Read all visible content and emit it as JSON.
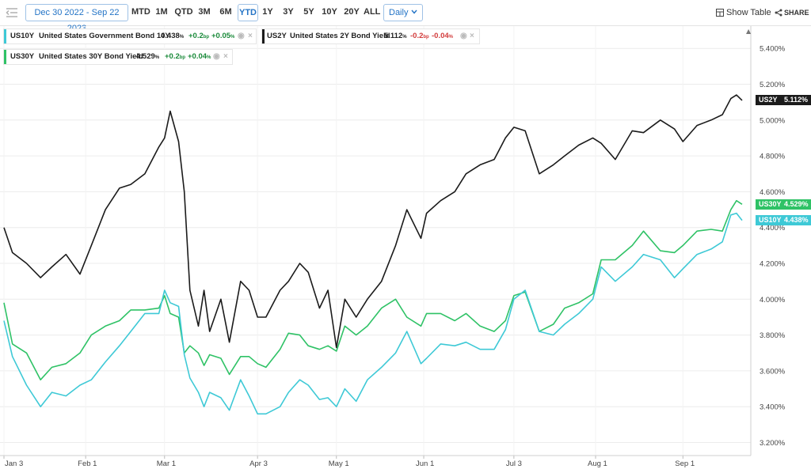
{
  "toolbar": {
    "date_range": "Dec 30 2022 - Sep 22 2023",
    "periods": [
      "MTD",
      "1M",
      "QTD",
      "3M",
      "6M",
      "YTD",
      "1Y",
      "3Y",
      "5Y",
      "10Y",
      "20Y",
      "ALL"
    ],
    "active_period": "YTD",
    "frequency": "Daily",
    "show_table_label": "Show Table",
    "share_label": "SHARE"
  },
  "legend": [
    {
      "ticker": "US10Y",
      "name": "United States Government Bond 10Y",
      "value": "4.438",
      "unit": "%",
      "change_bp": "+0.2",
      "bp_unit": "bp",
      "change_pct": "+0.05",
      "pct_unit": "%",
      "color": "#3ec9d6"
    },
    {
      "ticker": "US2Y",
      "name": "United States 2Y Bond Yield",
      "value": "5.112",
      "unit": "%",
      "change_bp": "-0.2",
      "bp_unit": "bp",
      "change_pct": "-0.04",
      "pct_unit": "%",
      "color": "#1b1b1b"
    },
    {
      "ticker": "US30Y",
      "name": "United States 30Y Bond Yield",
      "value": "4.529",
      "unit": "%",
      "change_bp": "+0.2",
      "bp_unit": "bp",
      "change_pct": "+0.04",
      "pct_unit": "%",
      "color": "#2fc266"
    }
  ],
  "end_labels": [
    {
      "ticker": "US2Y",
      "value": "5.112%",
      "color": "#1b1b1b"
    },
    {
      "ticker": "US30Y",
      "value": "4.529%",
      "color": "#2fc266"
    },
    {
      "ticker": "US10Y",
      "value": "4.438%",
      "color": "#3ec9d6"
    }
  ],
  "chart_data": {
    "type": "line",
    "x": [
      "Jan 3",
      "Jan 6",
      "Jan 11",
      "Jan 16",
      "Jan 20",
      "Jan 25",
      "Jan 30",
      "Feb 3",
      "Feb 8",
      "Feb 13",
      "Feb 17",
      "Feb 22",
      "Feb 27",
      "Mar 1",
      "Mar 3",
      "Mar 6",
      "Mar 8",
      "Mar 10",
      "Mar 13",
      "Mar 15",
      "Mar 17",
      "Mar 21",
      "Mar 24",
      "Mar 28",
      "Mar 31",
      "Apr 3",
      "Apr 6",
      "Apr 11",
      "Apr 14",
      "Apr 18",
      "Apr 21",
      "Apr 25",
      "Apr 28",
      "May 1",
      "May 4",
      "May 8",
      "May 12",
      "May 17",
      "May 22",
      "May 26",
      "May 31",
      "Jun 2",
      "Jun 7",
      "Jun 12",
      "Jun 16",
      "Jun 21",
      "Jun 26",
      "Jun 30",
      "Jul 3",
      "Jul 7",
      "Jul 12",
      "Jul 17",
      "Jul 21",
      "Jul 26",
      "Jul 31",
      "Aug 3",
      "Aug 8",
      "Aug 14",
      "Aug 18",
      "Aug 24",
      "Aug 29",
      "Sep 1",
      "Sep 6",
      "Sep 11",
      "Sep 15",
      "Sep 18",
      "Sep 20",
      "Sep 22"
    ],
    "x_ticks": [
      "Jan 3",
      "Feb 1",
      "Mar 1",
      "Apr 3",
      "May 1",
      "Jun 1",
      "Jul 3",
      "Aug 1",
      "Sep 1"
    ],
    "series": [
      {
        "name": "US2Y",
        "color": "#1b1b1b",
        "values": [
          4.4,
          4.26,
          4.2,
          4.12,
          4.18,
          4.25,
          4.14,
          4.3,
          4.5,
          4.62,
          4.64,
          4.7,
          4.85,
          4.9,
          5.05,
          4.88,
          4.6,
          4.05,
          3.85,
          4.05,
          3.82,
          4.0,
          3.76,
          4.1,
          4.05,
          3.9,
          3.9,
          4.05,
          4.1,
          4.2,
          4.15,
          3.95,
          4.05,
          3.73,
          4.0,
          3.9,
          4.0,
          4.1,
          4.3,
          4.5,
          4.34,
          4.48,
          4.55,
          4.6,
          4.7,
          4.75,
          4.78,
          4.9,
          4.96,
          4.94,
          4.7,
          4.75,
          4.8,
          4.86,
          4.9,
          4.87,
          4.78,
          4.94,
          4.93,
          5.0,
          4.95,
          4.88,
          4.97,
          5.0,
          5.03,
          5.12,
          5.14,
          5.11
        ]
      },
      {
        "name": "US30Y",
        "color": "#2fc266",
        "values": [
          3.98,
          3.75,
          3.7,
          3.55,
          3.62,
          3.64,
          3.7,
          3.8,
          3.85,
          3.88,
          3.94,
          3.94,
          3.95,
          4.02,
          3.92,
          3.9,
          3.7,
          3.74,
          3.7,
          3.63,
          3.69,
          3.67,
          3.58,
          3.68,
          3.68,
          3.64,
          3.62,
          3.72,
          3.81,
          3.8,
          3.74,
          3.72,
          3.74,
          3.71,
          3.85,
          3.8,
          3.85,
          3.95,
          4.0,
          3.9,
          3.85,
          3.92,
          3.92,
          3.88,
          3.92,
          3.85,
          3.82,
          3.88,
          4.02,
          4.04,
          3.82,
          3.86,
          3.95,
          3.98,
          4.03,
          4.22,
          4.22,
          4.3,
          4.38,
          4.27,
          4.26,
          4.3,
          4.38,
          4.39,
          4.38,
          4.5,
          4.55,
          4.53
        ]
      },
      {
        "name": "US10Y",
        "color": "#3ec9d6",
        "values": [
          3.88,
          3.68,
          3.52,
          3.4,
          3.48,
          3.46,
          3.52,
          3.55,
          3.65,
          3.74,
          3.82,
          3.92,
          3.92,
          4.05,
          3.98,
          3.96,
          3.69,
          3.56,
          3.48,
          3.4,
          3.48,
          3.45,
          3.38,
          3.55,
          3.46,
          3.36,
          3.36,
          3.4,
          3.48,
          3.55,
          3.52,
          3.44,
          3.45,
          3.4,
          3.5,
          3.43,
          3.55,
          3.62,
          3.7,
          3.82,
          3.64,
          3.67,
          3.75,
          3.74,
          3.76,
          3.72,
          3.72,
          3.83,
          4.0,
          4.05,
          3.82,
          3.8,
          3.86,
          3.92,
          4.0,
          4.18,
          4.1,
          4.18,
          4.25,
          4.22,
          4.12,
          4.17,
          4.25,
          4.28,
          4.32,
          4.47,
          4.48,
          4.44
        ]
      }
    ],
    "ylim": [
      3.18,
      5.49
    ],
    "y_ticks": [
      "3.200%",
      "3.400%",
      "3.600%",
      "3.800%",
      "4.000%",
      "4.200%",
      "4.400%",
      "4.600%",
      "4.800%",
      "5.000%",
      "5.200%",
      "5.400%"
    ],
    "grid": true,
    "legend_position": "top-left"
  }
}
